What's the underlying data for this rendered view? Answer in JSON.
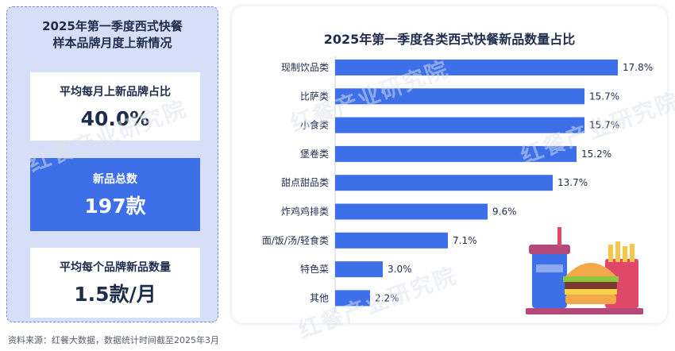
{
  "left_panel": {
    "title_line1": "2025年第一季度西式快餐",
    "title_line2": "样本品牌月度上新情况",
    "cards": [
      {
        "label": "平均每月上新品牌占比",
        "value": "40.0%"
      },
      {
        "label": "新品总数",
        "value": "197款"
      },
      {
        "label": "平均每个品牌新品数量",
        "value": "1.5款/月"
      }
    ]
  },
  "watermark_text": "红餐产业研究院",
  "source": "资料来源：红餐大数据，数据统计时间截至2025年3月",
  "colors": {
    "bar": "#3d6fe8",
    "accent": "#3d6fe8",
    "panel": "#d6dff7"
  },
  "chart_data": {
    "type": "bar",
    "orientation": "horizontal",
    "title": "2025年第一季度各类西式快餐新品数量占比",
    "categories": [
      "现制饮品类",
      "比萨类",
      "小食类",
      "堡卷类",
      "甜点甜品类",
      "炸鸡鸡排类",
      "面/饭/汤/轻食类",
      "特色菜",
      "其他"
    ],
    "values": [
      17.8,
      15.7,
      15.7,
      15.2,
      13.7,
      9.6,
      7.1,
      3.0,
      2.2
    ],
    "value_labels": [
      "17.8%",
      "15.7%",
      "15.7%",
      "15.2%",
      "13.7%",
      "9.6%",
      "7.1%",
      "3.0%",
      "2.2%"
    ],
    "unit": "%",
    "xlim": [
      0,
      20
    ],
    "grid": false,
    "legend": "none"
  }
}
